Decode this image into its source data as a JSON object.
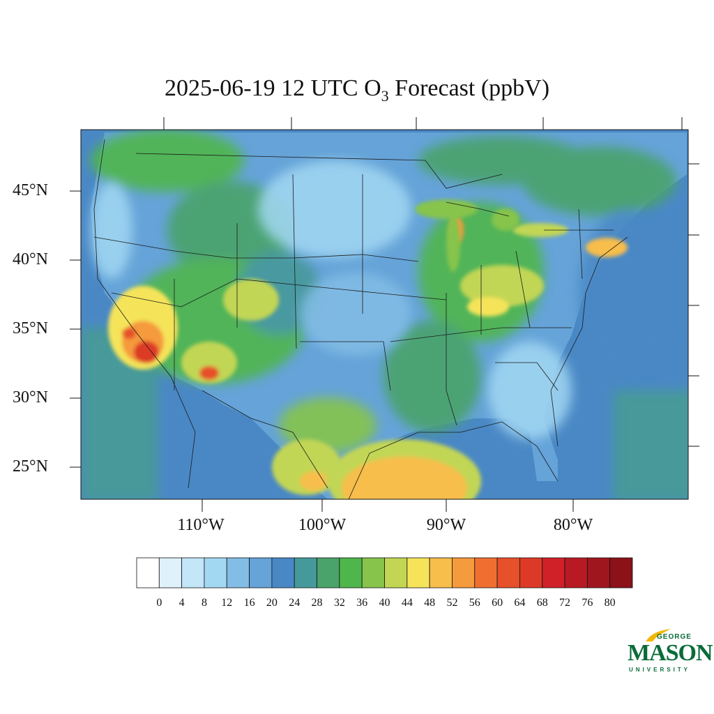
{
  "title": {
    "main": "2025-06-19 12 UTC O",
    "subscript": "3",
    "suffix": " Forecast (ppbV)"
  },
  "map": {
    "lat_labels": [
      "45°N",
      "40°N",
      "35°N",
      "30°N",
      "25°N"
    ],
    "lon_labels": [
      "110°W",
      "100°W",
      "90°W",
      "80°W"
    ]
  },
  "colorbar": {
    "labels": [
      "0",
      "4",
      "8",
      "12",
      "16",
      "20",
      "24",
      "28",
      "32",
      "36",
      "40",
      "44",
      "48",
      "52",
      "56",
      "60",
      "64",
      "68",
      "72",
      "76",
      "80"
    ],
    "colors": [
      "#ffffff",
      "#dff1fb",
      "#c3e6f8",
      "#a3d8f3",
      "#83bde6",
      "#65a3d8",
      "#4a88c5",
      "#46999a",
      "#4aa36a",
      "#4fb64b",
      "#86c44b",
      "#c2d654",
      "#f5e45a",
      "#f7be4b",
      "#f59a3d",
      "#f06f30",
      "#e6502a",
      "#dc3a27",
      "#d02028",
      "#b81a24",
      "#a0161f",
      "#8a1218"
    ]
  },
  "logo": {
    "top": "GEORGE",
    "main": "MASON",
    "bottom": "UNIVERSITY"
  }
}
